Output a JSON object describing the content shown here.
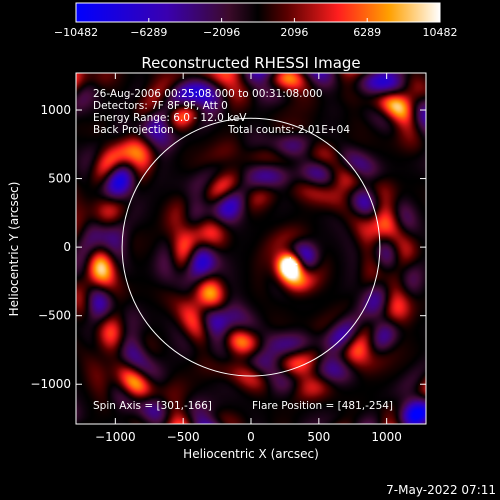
{
  "chart_data": {
    "type": "heatmap",
    "title": "Reconstructed RHESSI Image",
    "xlabel": "Heliocentric X (arcsec)",
    "ylabel": "Heliocentric Y (arcsec)",
    "xlim": [
      -1290,
      1290
    ],
    "ylim": [
      -1290,
      1270
    ],
    "x_ticks": [
      -1000,
      -500,
      0,
      500,
      1000
    ],
    "x_tick_labels": [
      "−1000",
      "−500",
      "0",
      "500",
      "1000"
    ],
    "y_ticks": [
      -1000,
      -500,
      0,
      500,
      1000
    ],
    "y_tick_labels": [
      "−1000",
      "−500",
      "0",
      "500",
      "1000"
    ],
    "colorbar": {
      "min": -10482,
      "max": 10482,
      "tick_values": [
        -10482,
        -6289,
        -2096,
        2096,
        6289,
        10482
      ],
      "tick_labels": [
        "−10482",
        "−6289",
        "−2096",
        "2096",
        "6289",
        "10482"
      ]
    },
    "annotations": [
      "26-Aug-2006 00:25:08.000 to 00:31:08.000",
      "Detectors: 7F 8F 9F, Att 0",
      "Energy Range: 6.0 - 12.0 keV",
      "Back Projection",
      "Total counts: 2.01E+04"
    ],
    "spin_axis": "Spin Axis = [301,-166]",
    "flare_position": "Flare Position = [481,-254]",
    "solar_limb_radius": 950,
    "flare_marker": [
      290,
      -125
    ],
    "source_peak": {
      "x": 290,
      "y": -125,
      "value": 10482
    },
    "grid": false
  },
  "footer": {
    "timestamp": "7-May-2022 07:11"
  }
}
